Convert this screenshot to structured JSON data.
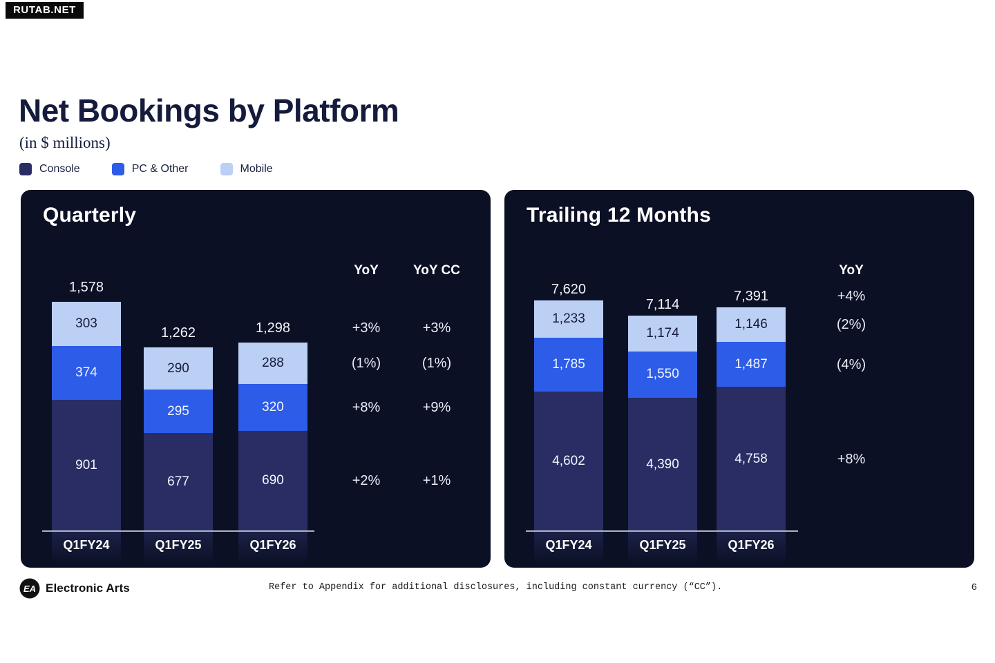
{
  "watermark": {
    "label": "RUTAB.NET"
  },
  "header": {
    "title": "Net Bookings by Platform",
    "subtitle": "(in $ millions)"
  },
  "legend": {
    "items": [
      {
        "label": "Console",
        "color": "#292d64"
      },
      {
        "label": "PC & Other",
        "color": "#2d5ce8"
      },
      {
        "label": "Mobile",
        "color": "#bccff4"
      }
    ]
  },
  "colors": {
    "panel_bg": "#0b1024",
    "console": "#292d64",
    "pc": "#2d5ce8",
    "mobile": "#bccff4",
    "title_text": "#141b3c",
    "label_on_mobile": "#141b3c",
    "label_on_dark": "#f3f5fb",
    "axis_line": "#cacfdd"
  },
  "chart_data": [
    {
      "type": "bar",
      "stacked": true,
      "title": "Quarterly",
      "categories": [
        "Q1FY24",
        "Q1FY25",
        "Q1FY26"
      ],
      "series": [
        {
          "name": "Console",
          "values": [
            901,
            677,
            690
          ]
        },
        {
          "name": "PC & Other",
          "values": [
            374,
            295,
            320
          ]
        },
        {
          "name": "Mobile",
          "values": [
            303,
            290,
            288
          ]
        }
      ],
      "totals": [
        1578,
        1262,
        1298
      ],
      "ylim": [
        0,
        1650
      ],
      "grid": false,
      "yoy_columns": [
        {
          "header": "YoY",
          "rows": {
            "total": "+3%",
            "mobile": "(1%)",
            "pc": "+8%",
            "console": "+2%"
          }
        },
        {
          "header": "YoY CC",
          "rows": {
            "total": "+3%",
            "mobile": "(1%)",
            "pc": "+9%",
            "console": "+1%"
          }
        }
      ]
    },
    {
      "type": "bar",
      "stacked": true,
      "title": "Trailing 12 Months",
      "categories": [
        "Q1FY24",
        "Q1FY25",
        "Q1FY26"
      ],
      "series": [
        {
          "name": "Console",
          "values": [
            4602,
            4390,
            4758
          ]
        },
        {
          "name": "PC & Other",
          "values": [
            1785,
            1550,
            1487
          ]
        },
        {
          "name": "Mobile",
          "values": [
            1233,
            1174,
            1146
          ]
        }
      ],
      "totals": [
        7620,
        7114,
        7391
      ],
      "ylim": [
        0,
        7900
      ],
      "grid": false,
      "yoy_columns": [
        {
          "header": "YoY",
          "rows": {
            "total": "+4%",
            "mobile": "(2%)",
            "pc": "(4%)",
            "console": "+8%"
          }
        }
      ]
    }
  ],
  "footer": {
    "brand": "Electronic Arts",
    "logo": "ea-logo",
    "note": "Refer to Appendix for additional disclosures, including constant currency (“CC”).",
    "page_number": "6"
  }
}
